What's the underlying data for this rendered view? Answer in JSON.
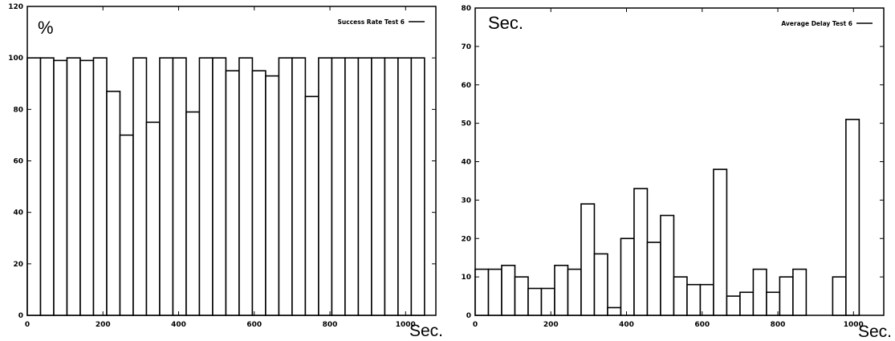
{
  "chart_data": [
    {
      "type": "bar",
      "title": "",
      "ylabel": "%",
      "xlabel": "Sec.",
      "legend": {
        "label": "Success Rate Test 6",
        "placement": "top-right"
      },
      "xlim": [
        0,
        1080
      ],
      "ylim": [
        0,
        120
      ],
      "xticks": [
        0,
        200,
        400,
        600,
        800,
        1000
      ],
      "yticks": [
        0,
        20,
        40,
        60,
        80,
        100,
        120
      ],
      "bar_width": 35,
      "x": [
        0,
        35,
        70,
        105,
        140,
        175,
        210,
        245,
        280,
        315,
        350,
        385,
        420,
        455,
        490,
        525,
        560,
        595,
        630,
        665,
        700,
        735,
        770,
        805,
        840,
        875,
        910,
        945,
        980,
        1015
      ],
      "values": [
        100,
        100,
        99,
        100,
        99,
        100,
        87,
        70,
        100,
        75,
        100,
        100,
        79,
        100,
        100,
        95,
        100,
        95,
        93,
        100,
        100,
        85,
        100,
        100,
        100,
        100,
        100,
        100,
        100,
        100
      ]
    },
    {
      "type": "bar",
      "title": "",
      "ylabel": "Sec.",
      "xlabel": "Sec.",
      "legend": {
        "label": "Average Delay Test 6",
        "placement": "top-right"
      },
      "xlim": [
        0,
        1080
      ],
      "ylim": [
        0,
        80
      ],
      "xticks": [
        0,
        200,
        400,
        600,
        800,
        1000
      ],
      "yticks": [
        0,
        10,
        20,
        30,
        40,
        50,
        60,
        70,
        80
      ],
      "bar_width": 35,
      "x": [
        0,
        35,
        70,
        105,
        140,
        175,
        210,
        245,
        280,
        315,
        350,
        385,
        420,
        455,
        490,
        525,
        560,
        595,
        630,
        665,
        700,
        735,
        770,
        805,
        840,
        945,
        980
      ],
      "values": [
        12,
        12,
        13,
        10,
        7,
        7,
        13,
        12,
        29,
        16,
        2,
        20,
        33,
        19,
        26,
        10,
        8,
        8,
        38,
        5,
        6,
        12,
        6,
        10,
        12,
        10,
        51
      ]
    }
  ]
}
